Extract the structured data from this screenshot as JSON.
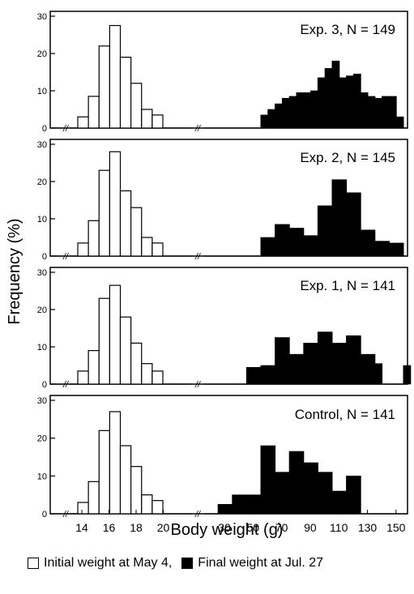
{
  "figure": {
    "ylabel": "Frequency (%)",
    "xlabel": "Body weight (g)",
    "y_ticks": [
      "0",
      "10",
      "20",
      "30"
    ],
    "x_ticks_initial": [
      "14",
      "16",
      "18",
      "20"
    ],
    "x_ticks_final": [
      "30",
      "50",
      "70",
      "90",
      "110",
      "130",
      "150"
    ],
    "axis_break": "//"
  },
  "legend": {
    "initial_label": "Initial weight at May 4,",
    "final_label": "Final weight at Jul. 27"
  },
  "colors": {
    "initial_fill": "#ffffff",
    "final_fill": "#000000",
    "stroke": "#000000"
  },
  "chart_data": [
    {
      "type": "bar",
      "panel_label": "Exp. 3,   N = 149",
      "ylim": [
        0,
        30
      ],
      "initial": {
        "x": [
          14,
          15,
          16,
          17,
          18,
          19,
          20,
          21
        ],
        "values": [
          3,
          8.5,
          22,
          27.5,
          19,
          12,
          5,
          3.5
        ]
      },
      "final": {
        "x": [
          60,
          65,
          70,
          75,
          80,
          85,
          90,
          95,
          100,
          105,
          110,
          115,
          120,
          125,
          130,
          135,
          140,
          145,
          150,
          155,
          160
        ],
        "values": [
          3.5,
          5,
          6.5,
          8,
          8.5,
          9.5,
          9.5,
          10,
          13.5,
          16,
          18,
          13.5,
          14,
          14.5,
          9.5,
          8.5,
          8,
          8.5,
          8.5,
          3,
          0
        ]
      }
    },
    {
      "type": "bar",
      "panel_label": "Exp. 2,   N = 145",
      "ylim": [
        0,
        30
      ],
      "initial": {
        "x": [
          14,
          15,
          16,
          17,
          18,
          19,
          20,
          21
        ],
        "values": [
          3.5,
          9.5,
          23,
          28,
          17.5,
          13,
          5,
          3.5
        ]
      },
      "final": {
        "x": [
          60,
          65,
          70,
          75,
          80,
          85,
          90,
          95,
          100,
          105,
          110,
          115,
          120,
          125,
          130,
          135,
          140,
          145,
          150,
          155,
          160
        ],
        "values": [
          5,
          5,
          8.5,
          8.5,
          7.5,
          7.5,
          5.5,
          5.5,
          13.5,
          13.5,
          20.5,
          20.5,
          17,
          17,
          7,
          7,
          4,
          4,
          3.5,
          3.5,
          0
        ]
      }
    },
    {
      "type": "bar",
      "panel_label": "Exp. 1,   N = 141",
      "ylim": [
        0,
        30
      ],
      "initial": {
        "x": [
          14,
          15,
          16,
          17,
          18,
          19,
          20,
          21
        ],
        "values": [
          3.5,
          9,
          23,
          26.5,
          18,
          11,
          5.5,
          3.5
        ]
      },
      "final": {
        "x": [
          50,
          55,
          60,
          65,
          70,
          75,
          80,
          85,
          90,
          95,
          100,
          105,
          110,
          115,
          120,
          125,
          130,
          135,
          140,
          145,
          150,
          155,
          160
        ],
        "values": [
          4.5,
          4.5,
          5,
          5,
          12.5,
          12.5,
          8,
          8,
          11,
          11,
          14,
          14,
          11,
          11,
          13,
          13,
          8,
          8,
          5.5,
          0,
          0,
          0,
          5
        ]
      }
    },
    {
      "type": "bar",
      "panel_label": "Control,   N = 141",
      "ylim": [
        0,
        30
      ],
      "initial": {
        "x": [
          14,
          15,
          16,
          17,
          18,
          19,
          20,
          21
        ],
        "values": [
          3,
          8.5,
          22,
          27,
          18,
          12.5,
          5,
          3.5
        ]
      },
      "final": {
        "x": [
          30,
          35,
          40,
          45,
          50,
          55,
          60,
          65,
          70,
          75,
          80,
          85,
          90,
          95,
          100,
          105,
          110,
          115,
          120,
          125
        ],
        "values": [
          2.5,
          2.5,
          5,
          5,
          5,
          5,
          18,
          18,
          11,
          11,
          16.5,
          16.5,
          13.5,
          13.5,
          11,
          11,
          6,
          6,
          10,
          10
        ]
      }
    }
  ]
}
